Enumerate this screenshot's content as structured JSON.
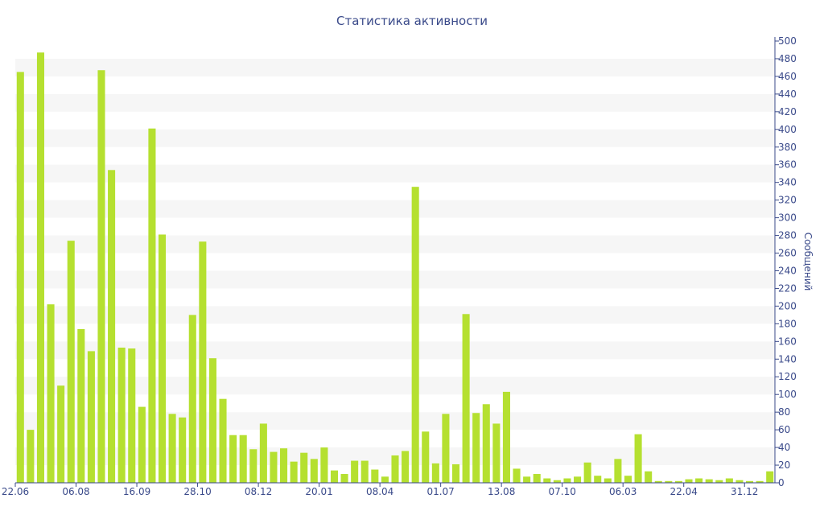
{
  "chart_data": {
    "type": "bar",
    "title": "Статистика активности",
    "xlabel": "",
    "ylabel": "Сообщений",
    "ylim": [
      0,
      500
    ],
    "y_ticks": [
      0,
      20,
      40,
      60,
      80,
      100,
      120,
      140,
      160,
      180,
      200,
      220,
      240,
      260,
      280,
      300,
      320,
      340,
      360,
      380,
      400,
      420,
      440,
      460,
      480,
      500
    ],
    "y_axis_side": "right",
    "grid": "alternating horizontal bands",
    "x_tick_labels": [
      {
        "label": "22.06",
        "index": 0
      },
      {
        "label": "06.08",
        "index": 6
      },
      {
        "label": "16.09",
        "index": 12
      },
      {
        "label": "28.10",
        "index": 18
      },
      {
        "label": "08.12",
        "index": 24
      },
      {
        "label": "20.01",
        "index": 30
      },
      {
        "label": "08.04",
        "index": 36
      },
      {
        "label": "01.07",
        "index": 42
      },
      {
        "label": "13.08",
        "index": 48
      },
      {
        "label": "07.10",
        "index": 54
      },
      {
        "label": "06.03",
        "index": 60
      },
      {
        "label": "22.04",
        "index": 66
      },
      {
        "label": "31.12",
        "index": 72
      }
    ],
    "values": [
      465,
      60,
      487,
      202,
      110,
      274,
      174,
      149,
      467,
      354,
      153,
      152,
      86,
      401,
      281,
      78,
      74,
      190,
      273,
      141,
      95,
      54,
      54,
      38,
      67,
      35,
      39,
      24,
      34,
      27,
      40,
      14,
      10,
      25,
      25,
      15,
      7,
      31,
      36,
      335,
      58,
      22,
      78,
      21,
      191,
      79,
      89,
      67,
      103,
      16,
      7,
      10,
      5,
      3,
      5,
      7,
      23,
      8,
      5,
      27,
      8,
      55,
      13,
      2,
      2,
      2,
      4,
      5,
      4,
      3,
      5,
      3,
      2,
      2,
      13
    ],
    "colors": {
      "bar": "#b5e030",
      "text": "#3a4a8a",
      "band": "#f6f6f6"
    }
  }
}
